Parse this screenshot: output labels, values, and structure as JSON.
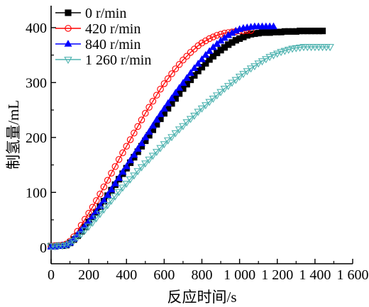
{
  "chart_data": {
    "type": "line",
    "xlabel": "反应时间/s",
    "ylabel": "制氢量/mL",
    "xlim": [
      0,
      1600
    ],
    "ylim": [
      -30,
      440
    ],
    "xticks": [
      0,
      200,
      400,
      600,
      800,
      1000,
      1200,
      1400,
      1600
    ],
    "xtick_labels": [
      "0",
      "200",
      "400",
      "600",
      "800",
      "1 000",
      "1 200",
      "1 400",
      "1 600"
    ],
    "yticks": [
      0,
      100,
      200,
      300,
      400
    ],
    "ytick_labels": [
      "0",
      "100",
      "200",
      "300",
      "400"
    ],
    "legend_position": "top-left",
    "series": [
      {
        "name": "0 r/min",
        "color": "#000000",
        "marker": "square-filled",
        "x": [
          0,
          20,
          40,
          60,
          80,
          100,
          120,
          140,
          160,
          180,
          200,
          220,
          240,
          260,
          280,
          300,
          320,
          340,
          360,
          380,
          400,
          420,
          440,
          460,
          480,
          500,
          520,
          540,
          560,
          580,
          600,
          620,
          640,
          660,
          680,
          700,
          720,
          740,
          760,
          780,
          800,
          820,
          840,
          860,
          880,
          900,
          920,
          940,
          960,
          980,
          1000,
          1020,
          1040,
          1060,
          1080,
          1100,
          1120,
          1140,
          1160,
          1180,
          1200,
          1220,
          1240,
          1260,
          1280,
          1300,
          1320,
          1340,
          1360,
          1380,
          1400,
          1420,
          1440
        ],
        "y": [
          2,
          2,
          3,
          3,
          4,
          8,
          14,
          21,
          29,
          37,
          46,
          55,
          64,
          74,
          84,
          94,
          104,
          114,
          124,
          134,
          144,
          154,
          164,
          174,
          184,
          194,
          204,
          214,
          224,
          234,
          244,
          253,
          262,
          271,
          280,
          289,
          297,
          305,
          313,
          321,
          328,
          335,
          342,
          348,
          354,
          359,
          364,
          369,
          373,
          377,
          380,
          383,
          386,
          388,
          389,
          390,
          391,
          391,
          391,
          392,
          392,
          392,
          393,
          393,
          393,
          393,
          394,
          394,
          394,
          394,
          394,
          394,
          394
        ]
      },
      {
        "name": "420 r/min",
        "color": "#ff0000",
        "marker": "circle-open",
        "x": [
          0,
          20,
          40,
          60,
          80,
          100,
          120,
          140,
          160,
          180,
          200,
          220,
          240,
          260,
          280,
          300,
          320,
          340,
          360,
          380,
          400,
          420,
          440,
          460,
          480,
          500,
          520,
          540,
          560,
          580,
          600,
          620,
          640,
          660,
          680,
          700,
          720,
          740,
          760,
          780,
          800,
          820,
          840,
          860,
          880,
          900,
          920,
          940,
          960,
          980,
          1000,
          1020,
          1040,
          1060
        ],
        "y": [
          2,
          3,
          3,
          4,
          6,
          11,
          19,
          29,
          40,
          51,
          62,
          73,
          85,
          97,
          110,
          122,
          135,
          147,
          160,
          172,
          184,
          196,
          208,
          220,
          232,
          244,
          255,
          266,
          277,
          288,
          298,
          307,
          316,
          325,
          333,
          341,
          348,
          355,
          361,
          367,
          372,
          376,
          380,
          383,
          386,
          388,
          390,
          391,
          392,
          393,
          394,
          394,
          395,
          395
        ]
      },
      {
        "name": "840 r/min",
        "color": "#0000ff",
        "marker": "triangle-up-filled",
        "x": [
          0,
          20,
          40,
          60,
          80,
          100,
          120,
          140,
          160,
          180,
          200,
          220,
          240,
          260,
          280,
          300,
          320,
          340,
          360,
          380,
          400,
          420,
          440,
          460,
          480,
          500,
          520,
          540,
          560,
          580,
          600,
          620,
          640,
          660,
          680,
          700,
          720,
          740,
          760,
          780,
          800,
          820,
          840,
          860,
          880,
          900,
          920,
          940,
          960,
          980,
          1000,
          1020,
          1040,
          1060,
          1080,
          1100,
          1120,
          1140,
          1160,
          1180
        ],
        "y": [
          1,
          1,
          2,
          3,
          4,
          8,
          15,
          23,
          31,
          39,
          47,
          56,
          65,
          75,
          85,
          95,
          105,
          116,
          126,
          137,
          147,
          158,
          168,
          179,
          189,
          200,
          210,
          221,
          232,
          242,
          252,
          262,
          271,
          281,
          290,
          299,
          308,
          317,
          326,
          334,
          342,
          350,
          357,
          364,
          370,
          376,
          381,
          386,
          390,
          394,
          397,
          399,
          400,
          401,
          402,
          402,
          402,
          402,
          402,
          402
        ]
      },
      {
        "name": "1 260 r/min",
        "color": "#4fb3b0",
        "marker": "triangle-down-open",
        "x": [
          0,
          20,
          40,
          60,
          80,
          100,
          120,
          140,
          160,
          180,
          200,
          220,
          240,
          260,
          280,
          300,
          320,
          340,
          360,
          380,
          400,
          420,
          440,
          460,
          480,
          500,
          520,
          540,
          560,
          580,
          600,
          620,
          640,
          660,
          680,
          700,
          720,
          740,
          760,
          780,
          800,
          820,
          840,
          860,
          880,
          900,
          920,
          940,
          960,
          980,
          1000,
          1020,
          1040,
          1060,
          1080,
          1100,
          1120,
          1140,
          1160,
          1180,
          1200,
          1220,
          1240,
          1260,
          1280,
          1300,
          1320,
          1340,
          1360,
          1380,
          1400,
          1420,
          1440,
          1460,
          1480
        ],
        "y": [
          2,
          2,
          3,
          3,
          4,
          7,
          12,
          18,
          24,
          31,
          38,
          45,
          53,
          61,
          69,
          77,
          85,
          93,
          101,
          109,
          116,
          124,
          131,
          139,
          146,
          153,
          160,
          167,
          174,
          181,
          188,
          195,
          201,
          208,
          215,
          221,
          228,
          234,
          240,
          247,
          253,
          259,
          265,
          271,
          277,
          283,
          289,
          294,
          300,
          305,
          311,
          316,
          321,
          326,
          330,
          335,
          339,
          343,
          347,
          350,
          353,
          356,
          358,
          360,
          362,
          363,
          364,
          365,
          365,
          365,
          365,
          365,
          365,
          365,
          365
        ]
      }
    ]
  }
}
